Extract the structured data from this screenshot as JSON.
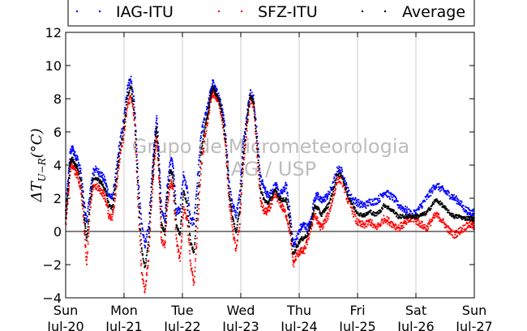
{
  "chart_data": {
    "type": "scatter",
    "ylabel": "ΔT_{U−R}(°C)",
    "ylim": [
      -4,
      12
    ],
    "yticks": [
      -4,
      -2,
      0,
      2,
      4,
      6,
      8,
      10,
      12
    ],
    "xlim": [
      "2014-07-20",
      "2014-07-27"
    ],
    "xticks": [
      {
        "day": "Sun",
        "date": "Jul-20"
      },
      {
        "day": "Mon",
        "date": "Jul-21"
      },
      {
        "day": "Tue",
        "date": "Jul-22"
      },
      {
        "day": "Wed",
        "date": "Jul-23"
      },
      {
        "day": "Thu",
        "date": "Jul-24"
      },
      {
        "day": "Fri",
        "date": "Jul-25"
      },
      {
        "day": "Sat",
        "date": "Jul-26"
      },
      {
        "day": "Sun",
        "date": "Jul-27"
      }
    ],
    "grid": "vertical",
    "zero_line": true,
    "legend_position": "top",
    "watermark": [
      "Grupo de Micrometeorologia",
      "IAG / USP"
    ],
    "series": [
      {
        "name": "IAG-ITU",
        "color": "#0000ff",
        "x": [
          0,
          0.04,
          0.08,
          0.12,
          0.16,
          0.2,
          0.26,
          0.32,
          0.36,
          0.42,
          0.48,
          0.56,
          0.62,
          0.68,
          0.74,
          0.8,
          0.86,
          0.92,
          1.0,
          1.06,
          1.12,
          1.18,
          1.24,
          1.3,
          1.36,
          1.42,
          1.48,
          1.52,
          1.56,
          1.6,
          1.64,
          1.7,
          1.74,
          1.8,
          1.84,
          1.9,
          1.96,
          2.02,
          2.08,
          2.14,
          2.2,
          2.26,
          2.32,
          2.38,
          2.44,
          2.48,
          2.52,
          2.56,
          2.62,
          2.68,
          2.74,
          2.8,
          2.86,
          2.92,
          2.98,
          3.04,
          3.1,
          3.16,
          3.22,
          3.28,
          3.34,
          3.4,
          3.46,
          3.52,
          3.6,
          3.66,
          3.72,
          3.78,
          3.84,
          3.9,
          3.96,
          4.02,
          4.08,
          4.14,
          4.2,
          4.26,
          4.32,
          4.38,
          4.44,
          4.5,
          4.58,
          4.66,
          4.74,
          4.82,
          4.9,
          4.98,
          5.06,
          5.14,
          5.22,
          5.3,
          5.38,
          5.46,
          5.54,
          5.62,
          5.7,
          5.78,
          5.86,
          5.94,
          6.02,
          6.1,
          6.18,
          6.26,
          6.34,
          6.42,
          6.5,
          6.58,
          6.66,
          6.74,
          6.82,
          6.9,
          6.96,
          7.0
        ],
        "y": [
          1.2,
          3.0,
          4.8,
          5.0,
          4.6,
          4.4,
          3.6,
          1.6,
          0.6,
          2.4,
          3.8,
          3.6,
          3.4,
          3.0,
          2.2,
          2.0,
          3.4,
          5.2,
          6.8,
          8.8,
          9.2,
          7.6,
          3.4,
          0.4,
          -0.8,
          0.2,
          3.6,
          5.4,
          7.0,
          4.6,
          1.4,
          0.6,
          2.8,
          4.4,
          4.0,
          1.2,
          1.4,
          3.4,
          2.6,
          0.6,
          0.6,
          3.2,
          5.8,
          6.8,
          7.6,
          8.4,
          9.0,
          8.6,
          8.2,
          7.4,
          6.0,
          3.0,
          1.6,
          1.0,
          2.2,
          5.2,
          7.0,
          8.4,
          8.0,
          5.8,
          3.2,
          2.6,
          2.2,
          2.4,
          2.8,
          2.2,
          2.4,
          2.8,
          1.2,
          -0.8,
          -0.4,
          0.2,
          0.4,
          0.2,
          0.6,
          2.0,
          2.2,
          1.8,
          2.0,
          2.2,
          2.8,
          3.8,
          3.6,
          2.6,
          2.0,
          1.8,
          1.6,
          1.6,
          1.8,
          1.8,
          2.0,
          2.4,
          2.2,
          2.0,
          1.6,
          1.4,
          1.2,
          1.0,
          1.2,
          1.6,
          2.0,
          2.4,
          2.8,
          2.6,
          2.4,
          2.2,
          2.0,
          1.8,
          1.4,
          1.2,
          1.1,
          1.2
        ]
      },
      {
        "name": "SFZ-ITU",
        "color": "#ff0000",
        "x": [
          0,
          0.04,
          0.08,
          0.12,
          0.16,
          0.2,
          0.26,
          0.32,
          0.36,
          0.42,
          0.48,
          0.56,
          0.62,
          0.68,
          0.74,
          0.8,
          0.86,
          0.92,
          1.0,
          1.06,
          1.12,
          1.18,
          1.24,
          1.3,
          1.36,
          1.42,
          1.48,
          1.52,
          1.56,
          1.6,
          1.64,
          1.7,
          1.74,
          1.8,
          1.84,
          1.9,
          1.96,
          2.02,
          2.08,
          2.14,
          2.2,
          2.26,
          2.32,
          2.38,
          2.44,
          2.48,
          2.52,
          2.56,
          2.62,
          2.68,
          2.74,
          2.8,
          2.86,
          2.92,
          2.98,
          3.04,
          3.1,
          3.16,
          3.22,
          3.28,
          3.34,
          3.4,
          3.46,
          3.52,
          3.6,
          3.66,
          3.72,
          3.78,
          3.84,
          3.9,
          3.96,
          4.02,
          4.08,
          4.14,
          4.2,
          4.26,
          4.32,
          4.38,
          4.44,
          4.5,
          4.58,
          4.66,
          4.74,
          4.82,
          4.9,
          4.98,
          5.06,
          5.14,
          5.22,
          5.3,
          5.38,
          5.46,
          5.54,
          5.62,
          5.7,
          5.78,
          5.86,
          5.94,
          6.02,
          6.1,
          6.18,
          6.26,
          6.34,
          6.42,
          6.5,
          6.58,
          6.66,
          6.74,
          6.82,
          6.9,
          6.96,
          7.0
        ],
        "y": [
          0.4,
          2.0,
          3.8,
          4.0,
          3.6,
          3.4,
          2.6,
          0.2,
          -2.0,
          1.4,
          2.8,
          2.6,
          2.4,
          2.0,
          1.0,
          0.8,
          2.4,
          4.2,
          5.8,
          7.6,
          8.2,
          6.6,
          1.6,
          -2.4,
          -3.6,
          -1.6,
          2.2,
          4.2,
          5.8,
          3.0,
          -0.6,
          -0.8,
          1.6,
          3.0,
          2.6,
          -0.6,
          -1.8,
          1.4,
          0.8,
          -2.0,
          -3.2,
          0.2,
          3.8,
          5.6,
          6.8,
          7.8,
          8.4,
          8.2,
          7.8,
          6.8,
          5.0,
          1.8,
          0.2,
          -1.2,
          0.4,
          3.8,
          6.0,
          8.0,
          7.6,
          4.6,
          1.8,
          1.2,
          1.2,
          1.6,
          2.2,
          1.8,
          1.4,
          1.0,
          0.0,
          -2.0,
          -1.4,
          -1.2,
          -1.2,
          -0.6,
          0.2,
          1.0,
          0.6,
          0.2,
          0.6,
          1.0,
          2.0,
          3.2,
          3.0,
          2.0,
          1.4,
          0.6,
          0.4,
          0.4,
          0.6,
          0.2,
          0.4,
          0.8,
          0.6,
          0.4,
          0.2,
          0.4,
          0.6,
          0.8,
          0.6,
          0.4,
          0.2,
          0.6,
          1.0,
          0.8,
          0.4,
          0.0,
          -0.2,
          0.0,
          0.2,
          0.4,
          0.4,
          0.3
        ]
      },
      {
        "name": "Average",
        "color": "#000000",
        "x": [
          0,
          0.04,
          0.08,
          0.12,
          0.16,
          0.2,
          0.26,
          0.32,
          0.36,
          0.42,
          0.48,
          0.56,
          0.62,
          0.68,
          0.74,
          0.8,
          0.86,
          0.92,
          1.0,
          1.06,
          1.12,
          1.18,
          1.24,
          1.3,
          1.36,
          1.42,
          1.48,
          1.52,
          1.56,
          1.6,
          1.64,
          1.7,
          1.74,
          1.8,
          1.84,
          1.9,
          1.96,
          2.02,
          2.08,
          2.14,
          2.2,
          2.26,
          2.32,
          2.38,
          2.44,
          2.48,
          2.52,
          2.56,
          2.62,
          2.68,
          2.74,
          2.8,
          2.86,
          2.92,
          2.98,
          3.04,
          3.1,
          3.16,
          3.22,
          3.28,
          3.34,
          3.4,
          3.46,
          3.52,
          3.6,
          3.66,
          3.72,
          3.78,
          3.84,
          3.9,
          3.96,
          4.02,
          4.08,
          4.14,
          4.2,
          4.26,
          4.32,
          4.38,
          4.44,
          4.5,
          4.58,
          4.66,
          4.74,
          4.82,
          4.9,
          4.98,
          5.06,
          5.14,
          5.22,
          5.3,
          5.38,
          5.46,
          5.54,
          5.62,
          5.7,
          5.78,
          5.86,
          5.94,
          6.02,
          6.1,
          6.18,
          6.26,
          6.34,
          6.42,
          6.5,
          6.58,
          6.66,
          6.74,
          6.82,
          6.9,
          6.96,
          7.0
        ],
        "y": [
          0.8,
          2.5,
          4.2,
          4.4,
          4.0,
          3.9,
          3.1,
          0.9,
          -0.6,
          1.9,
          3.3,
          3.1,
          2.9,
          2.5,
          1.6,
          1.4,
          2.9,
          4.7,
          6.3,
          8.2,
          8.7,
          7.1,
          2.5,
          -1.0,
          -2.2,
          -0.7,
          2.9,
          4.8,
          6.4,
          3.8,
          0.4,
          -0.1,
          2.2,
          3.7,
          3.3,
          0.3,
          -0.2,
          2.4,
          1.7,
          -0.7,
          -1.3,
          1.7,
          4.8,
          6.2,
          7.2,
          8.1,
          8.7,
          8.4,
          8.0,
          7.1,
          5.5,
          2.4,
          0.9,
          -0.1,
          1.3,
          4.5,
          6.5,
          8.2,
          7.8,
          5.2,
          2.5,
          1.9,
          1.7,
          2.0,
          2.5,
          2.0,
          1.9,
          1.9,
          0.6,
          -1.4,
          -0.9,
          -0.5,
          -0.4,
          -0.2,
          0.4,
          1.5,
          1.4,
          1.0,
          1.3,
          1.6,
          2.4,
          3.5,
          3.3,
          2.3,
          1.7,
          1.2,
          1.0,
          1.0,
          1.2,
          1.0,
          1.2,
          1.6,
          1.4,
          1.2,
          0.9,
          0.9,
          0.9,
          0.9,
          0.9,
          1.0,
          1.1,
          1.5,
          1.9,
          1.7,
          1.4,
          1.1,
          0.9,
          0.9,
          0.8,
          0.8,
          0.75,
          0.75
        ]
      }
    ]
  }
}
